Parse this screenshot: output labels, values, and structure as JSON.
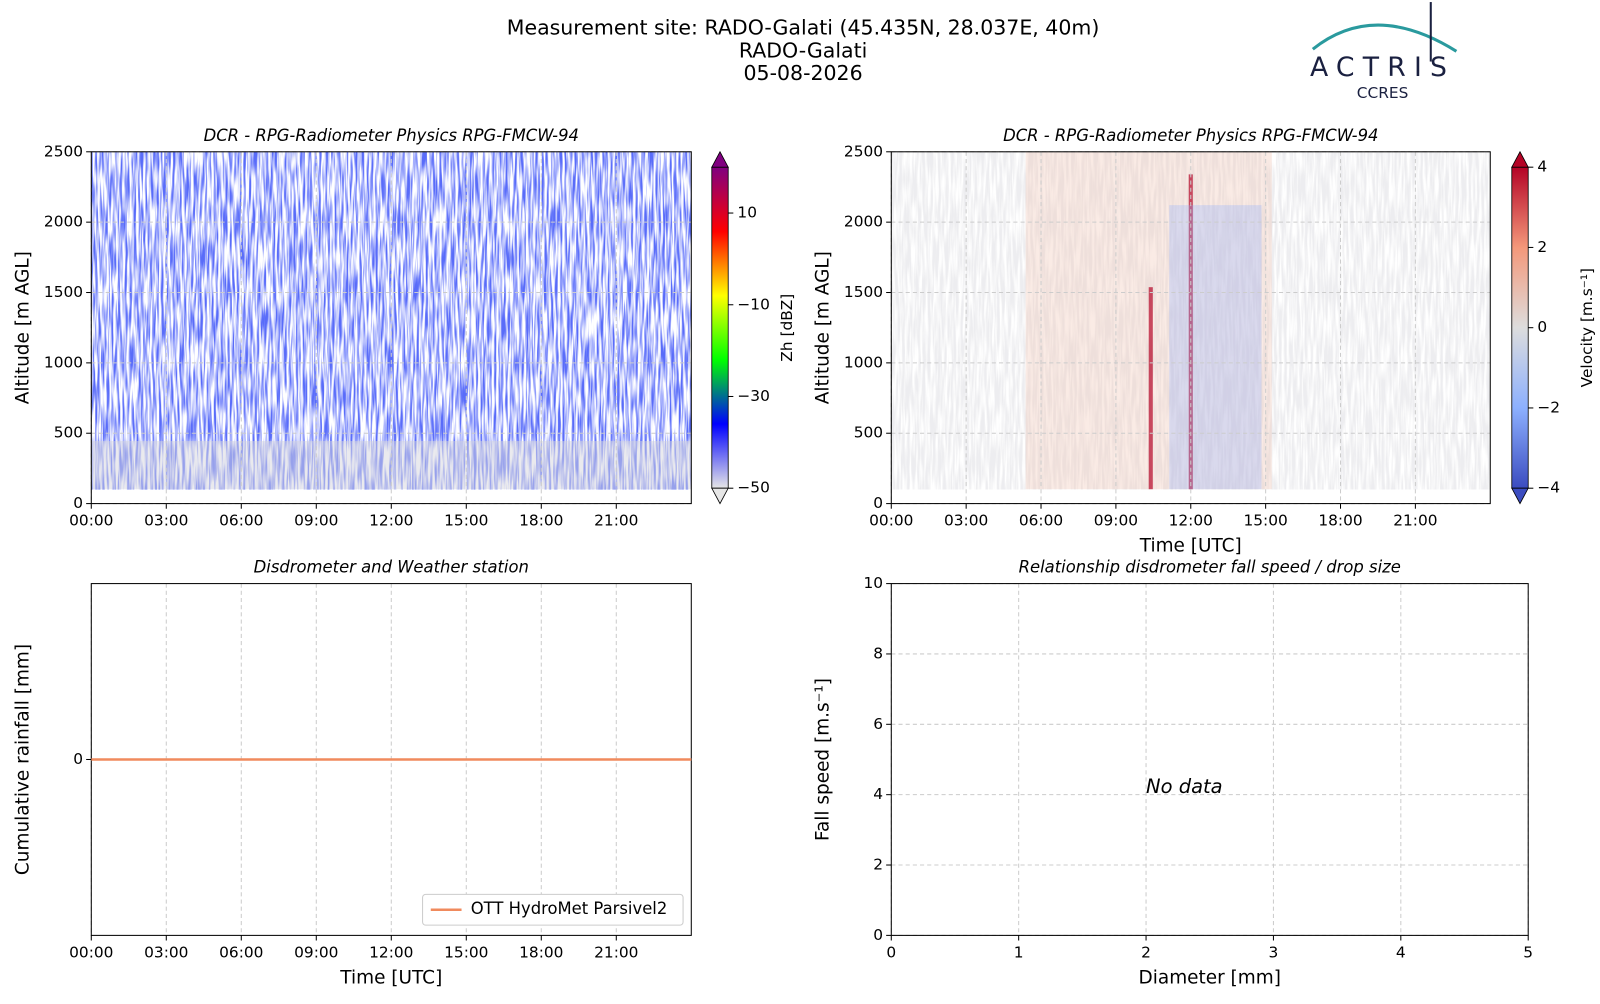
{
  "header": {
    "lines": [
      "Measurement site: RADO-Galati (45.435N, 28.037E, 40m)",
      "RADO-Galati",
      "05-08-2026"
    ]
  },
  "logo": {
    "name": "ACTRIS",
    "sub": "CCRES"
  },
  "chart_data": [
    {
      "type": "heatmap",
      "title": "DCR - RPG-Radiometer Physics RPG-FMCW-94",
      "ylabel": "Altitude [m AGL]",
      "grid": true,
      "xlim": [
        0,
        24
      ],
      "xticks": [
        {
          "value": 0,
          "label": "00:00"
        },
        {
          "value": 3,
          "label": "03:00"
        },
        {
          "value": 6,
          "label": "06:00"
        },
        {
          "value": 9,
          "label": "09:00"
        },
        {
          "value": 12,
          "label": "12:00"
        },
        {
          "value": 15,
          "label": "15:00"
        },
        {
          "value": 18,
          "label": "18:00"
        },
        {
          "value": 21,
          "label": "21:00"
        }
      ],
      "ylim": [
        0,
        2500
      ],
      "yticks": [
        0,
        500,
        1000,
        1500,
        2000,
        2500
      ],
      "colorbar": {
        "label": "Zh [dBZ]",
        "clim": [
          -50,
          20
        ],
        "ticks": [
          {
            "value": -50,
            "label": "−50"
          },
          {
            "value": -30,
            "label": "−30"
          },
          {
            "value": -10,
            "label": "−10"
          },
          10
        ],
        "colormap": [
          "#e6e6e6",
          "#0000ff",
          "#00ff00",
          "#ffff00",
          "#ff0000",
          "#800080"
        ]
      }
    },
    {
      "type": "heatmap",
      "title": "DCR - RPG-Radiometer Physics RPG-FMCW-94",
      "ylabel": "Altitude [m AGL]",
      "xlabel": "Time [UTC]",
      "grid": true,
      "xlim": [
        0,
        24
      ],
      "xticks": [
        {
          "value": 0,
          "label": "00:00"
        },
        {
          "value": 3,
          "label": "03:00"
        },
        {
          "value": 6,
          "label": "06:00"
        },
        {
          "value": 9,
          "label": "09:00"
        },
        {
          "value": 12,
          "label": "12:00"
        },
        {
          "value": 15,
          "label": "15:00"
        },
        {
          "value": 18,
          "label": "18:00"
        },
        {
          "value": 21,
          "label": "21:00"
        }
      ],
      "ylim": [
        0,
        2500
      ],
      "yticks": [
        0,
        500,
        1000,
        1500,
        2000,
        2500
      ],
      "colorbar": {
        "label": "Velocity [m.s⁻¹]",
        "clim": [
          -4,
          4
        ],
        "ticks": [
          {
            "value": -4,
            "label": "−4"
          },
          {
            "value": -2,
            "label": "−2"
          },
          0,
          2,
          4
        ],
        "colormap": [
          "#3b4cc0",
          "#8db0fe",
          "#dddddd",
          "#f4987a",
          "#b40426"
        ]
      }
    },
    {
      "type": "line",
      "title": "Disdrometer and Weather station",
      "ylabel": "Cumulative rainfall [mm]",
      "xlabel": "Time [UTC]",
      "grid": true,
      "legend": "lower right",
      "xlim": [
        0,
        24
      ],
      "xticks": [
        {
          "value": 0,
          "label": "00:00"
        },
        {
          "value": 3,
          "label": "03:00"
        },
        {
          "value": 6,
          "label": "06:00"
        },
        {
          "value": 9,
          "label": "09:00"
        },
        {
          "value": 12,
          "label": "12:00"
        },
        {
          "value": 15,
          "label": "15:00"
        },
        {
          "value": 18,
          "label": "18:00"
        },
        {
          "value": 21,
          "label": "21:00"
        }
      ],
      "ylim": [
        -0.055,
        0.055
      ],
      "yticks": [
        0
      ],
      "series": [
        {
          "name": "OTT HydroMet Parsivel2",
          "color": "#f08a5d",
          "x": [
            0,
            24
          ],
          "values": [
            0,
            0
          ]
        }
      ]
    },
    {
      "type": "scatter",
      "title": "Relationship disdrometer fall speed / drop size",
      "ylabel": "Fall speed [m.s⁻¹]",
      "xlabel": "Diameter [mm]",
      "grid": true,
      "annotation": "No data",
      "xlim": [
        0,
        5
      ],
      "xticks": [
        0,
        1,
        2,
        3,
        4,
        5
      ],
      "ylim": [
        0,
        10
      ],
      "yticks": [
        0,
        2,
        4,
        6,
        8,
        10
      ],
      "x": [],
      "values": []
    }
  ]
}
